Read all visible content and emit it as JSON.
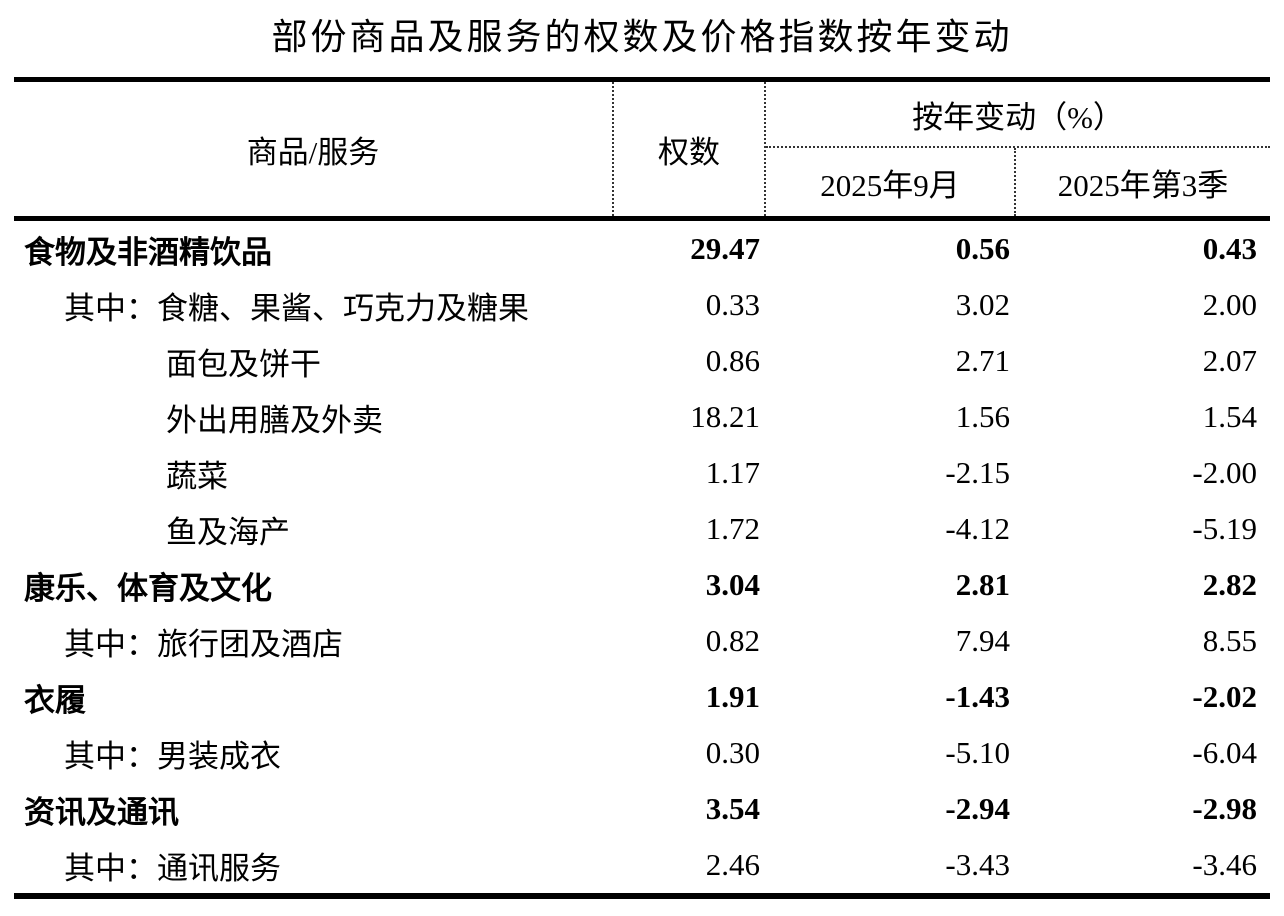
{
  "title": "部份商品及服务的权数及价格指数按年变动",
  "header": {
    "commodity_service": "商品/服务",
    "weight": "权数",
    "yoy_change": "按年变动（%）",
    "month": "2025年9月",
    "quarter": "2025年第3季"
  },
  "rows": [
    {
      "label": "食物及非酒精饮品",
      "level": 0,
      "bold": true,
      "weight": "29.47",
      "month": "0.56",
      "quarter": "0.43"
    },
    {
      "label": "其中：食糖、果酱、巧克力及糖果",
      "level": 1,
      "bold": false,
      "weight": "0.33",
      "month": "3.02",
      "quarter": "2.00"
    },
    {
      "label": "面包及饼干",
      "level": 2,
      "bold": false,
      "weight": "0.86",
      "month": "2.71",
      "quarter": "2.07"
    },
    {
      "label": "外出用膳及外卖",
      "level": 2,
      "bold": false,
      "weight": "18.21",
      "month": "1.56",
      "quarter": "1.54"
    },
    {
      "label": "蔬菜",
      "level": 2,
      "bold": false,
      "weight": "1.17",
      "month": "-2.15",
      "quarter": "-2.00"
    },
    {
      "label": "鱼及海产",
      "level": 2,
      "bold": false,
      "weight": "1.72",
      "month": "-4.12",
      "quarter": "-5.19"
    },
    {
      "label": "康乐、体育及文化",
      "level": 0,
      "bold": true,
      "weight": "3.04",
      "month": "2.81",
      "quarter": "2.82"
    },
    {
      "label": "其中：旅行团及酒店",
      "level": 1,
      "bold": false,
      "weight": "0.82",
      "month": "7.94",
      "quarter": "8.55"
    },
    {
      "label": "衣履",
      "level": 0,
      "bold": true,
      "weight": "1.91",
      "month": "-1.43",
      "quarter": "-2.02"
    },
    {
      "label": "其中：男装成衣",
      "level": 1,
      "bold": false,
      "weight": "0.30",
      "month": "-5.10",
      "quarter": "-6.04"
    },
    {
      "label": "资讯及通讯",
      "level": 0,
      "bold": true,
      "weight": "3.54",
      "month": "-2.94",
      "quarter": "-2.98"
    },
    {
      "label": "其中：通讯服务",
      "level": 1,
      "bold": false,
      "weight": "2.46",
      "month": "-3.43",
      "quarter": "-3.46"
    }
  ],
  "colors": {
    "text": "#000000",
    "background": "#ffffff",
    "rule": "#000000",
    "dotted_divider": "#333333"
  }
}
